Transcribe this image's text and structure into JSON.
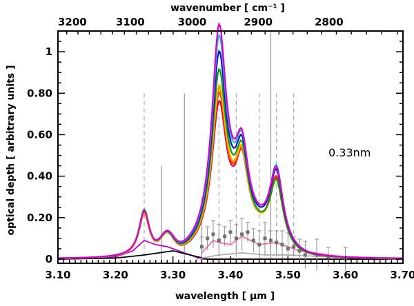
{
  "chart_data": {
    "type": "line",
    "xlabel": "wavelength [ μm ]",
    "ylabel": "optical depth [ arbitrary units ]",
    "x2label": "wavenumber [ cm⁻¹ ]",
    "annotation": "0.33nm",
    "xlim": [
      3.1,
      3.7
    ],
    "ylim": [
      -0.02,
      1.1
    ],
    "x_ticks": [
      3.1,
      3.2,
      3.3,
      3.4,
      3.5,
      3.6,
      3.7
    ],
    "x_tick_labels": [
      "3.10",
      "3.20",
      "3.30",
      "3.40",
      "3.50",
      "3.60",
      "3.70"
    ],
    "y_ticks": [
      0,
      0.2,
      0.4,
      0.6,
      0.8,
      1
    ],
    "y_tick_labels": [
      "0",
      "0.20",
      "0.40",
      "0.60",
      "0.80",
      "1"
    ],
    "top_ticks": [
      3200,
      3100,
      3000,
      2900,
      2800
    ],
    "top_tick_labels": [
      "3200",
      "3100",
      "3000",
      "2900",
      "2800"
    ],
    "series": [
      {
        "color": "#e8004a",
        "peaks": {
          "p325": 0.21,
          "p338": 0.66,
          "p342": 0.56,
          "p348": 0.4
        }
      },
      {
        "color": "#ff2a00",
        "peaks": {
          "p325": 0.2,
          "p338": 0.7,
          "p342": 0.55,
          "p348": 0.39
        }
      },
      {
        "color": "#ff7a00",
        "peaks": {
          "p325": 0.2,
          "p338": 0.72,
          "p342": 0.56,
          "p348": 0.38
        }
      },
      {
        "color": "#f2b600",
        "peaks": {
          "p325": 0.2,
          "p338": 0.73,
          "p342": 0.57,
          "p348": 0.38
        }
      },
      {
        "color": "#119a11",
        "peaks": {
          "p325": 0.22,
          "p338": 0.8,
          "p342": 0.58,
          "p348": 0.38
        }
      },
      {
        "color": "#0018c8",
        "peaks": {
          "p325": 0.21,
          "p338": 0.88,
          "p342": 0.59,
          "p348": 0.43
        }
      },
      {
        "color": "#29b5e8",
        "peaks": {
          "p325": 0.21,
          "p338": 0.95,
          "p342": 0.6,
          "p348": 0.45
        }
      },
      {
        "color": "#e000c8",
        "peaks": {
          "p325": 0.21,
          "p338": 1.0,
          "p342": 0.6,
          "p348": 0.44
        }
      }
    ],
    "lower_curves": [
      {
        "color": "#c000c8",
        "points": [
          [
            3.1,
            0.0
          ],
          [
            3.2,
            0.01
          ],
          [
            3.23,
            0.04
          ],
          [
            3.25,
            0.09
          ],
          [
            3.27,
            0.07
          ],
          [
            3.29,
            0.06
          ],
          [
            3.32,
            0.03
          ],
          [
            3.35,
            0.0
          ],
          [
            3.7,
            0.0
          ]
        ]
      },
      {
        "color": "#000000",
        "points": [
          [
            3.1,
            0.0
          ],
          [
            3.2,
            0.005
          ],
          [
            3.25,
            0.02
          ],
          [
            3.3,
            0.04
          ],
          [
            3.33,
            0.02
          ],
          [
            3.36,
            0.0
          ],
          [
            3.7,
            0.0
          ]
        ]
      },
      {
        "color": "#ff6a9a",
        "points": [
          [
            3.35,
            0.03
          ],
          [
            3.37,
            0.09
          ],
          [
            3.38,
            0.08
          ],
          [
            3.4,
            0.07
          ],
          [
            3.42,
            0.11
          ],
          [
            3.45,
            0.07
          ],
          [
            3.48,
            0.08
          ],
          [
            3.52,
            0.04
          ],
          [
            3.6,
            0.01
          ],
          [
            3.7,
            0.0
          ]
        ]
      },
      {
        "color": "#b0b0b0",
        "points": [
          [
            3.34,
            0.0
          ],
          [
            3.38,
            0.02
          ],
          [
            3.42,
            0.03
          ],
          [
            3.46,
            0.02
          ],
          [
            3.5,
            0.02
          ],
          [
            3.58,
            0.01
          ],
          [
            3.7,
            0.0
          ]
        ]
      }
    ],
    "data_points": [
      [
        3.35,
        0.06
      ],
      [
        3.36,
        0.1
      ],
      [
        3.37,
        0.12
      ],
      [
        3.38,
        0.09
      ],
      [
        3.39,
        0.11
      ],
      [
        3.4,
        0.13
      ],
      [
        3.41,
        0.1
      ],
      [
        3.42,
        0.12
      ],
      [
        3.43,
        0.13
      ],
      [
        3.44,
        0.09
      ],
      [
        3.45,
        0.07
      ],
      [
        3.46,
        0.1
      ],
      [
        3.47,
        0.09
      ],
      [
        3.48,
        0.08
      ],
      [
        3.49,
        0.07
      ],
      [
        3.5,
        0.05
      ],
      [
        3.51,
        0.06
      ],
      [
        3.52,
        0.04
      ],
      [
        3.53,
        0.02
      ],
      [
        3.55,
        0.02
      ],
      [
        3.57,
        0.01
      ],
      [
        3.6,
        0.0
      ]
    ],
    "dashed_lines": [
      3.25,
      3.38,
      3.41,
      3.45,
      3.48,
      3.51
    ],
    "solid_lines": [
      3.28,
      3.32,
      3.35,
      3.47
    ],
    "colors": {
      "gray_lines": "#a8a8a8",
      "axes": "#000000"
    }
  }
}
